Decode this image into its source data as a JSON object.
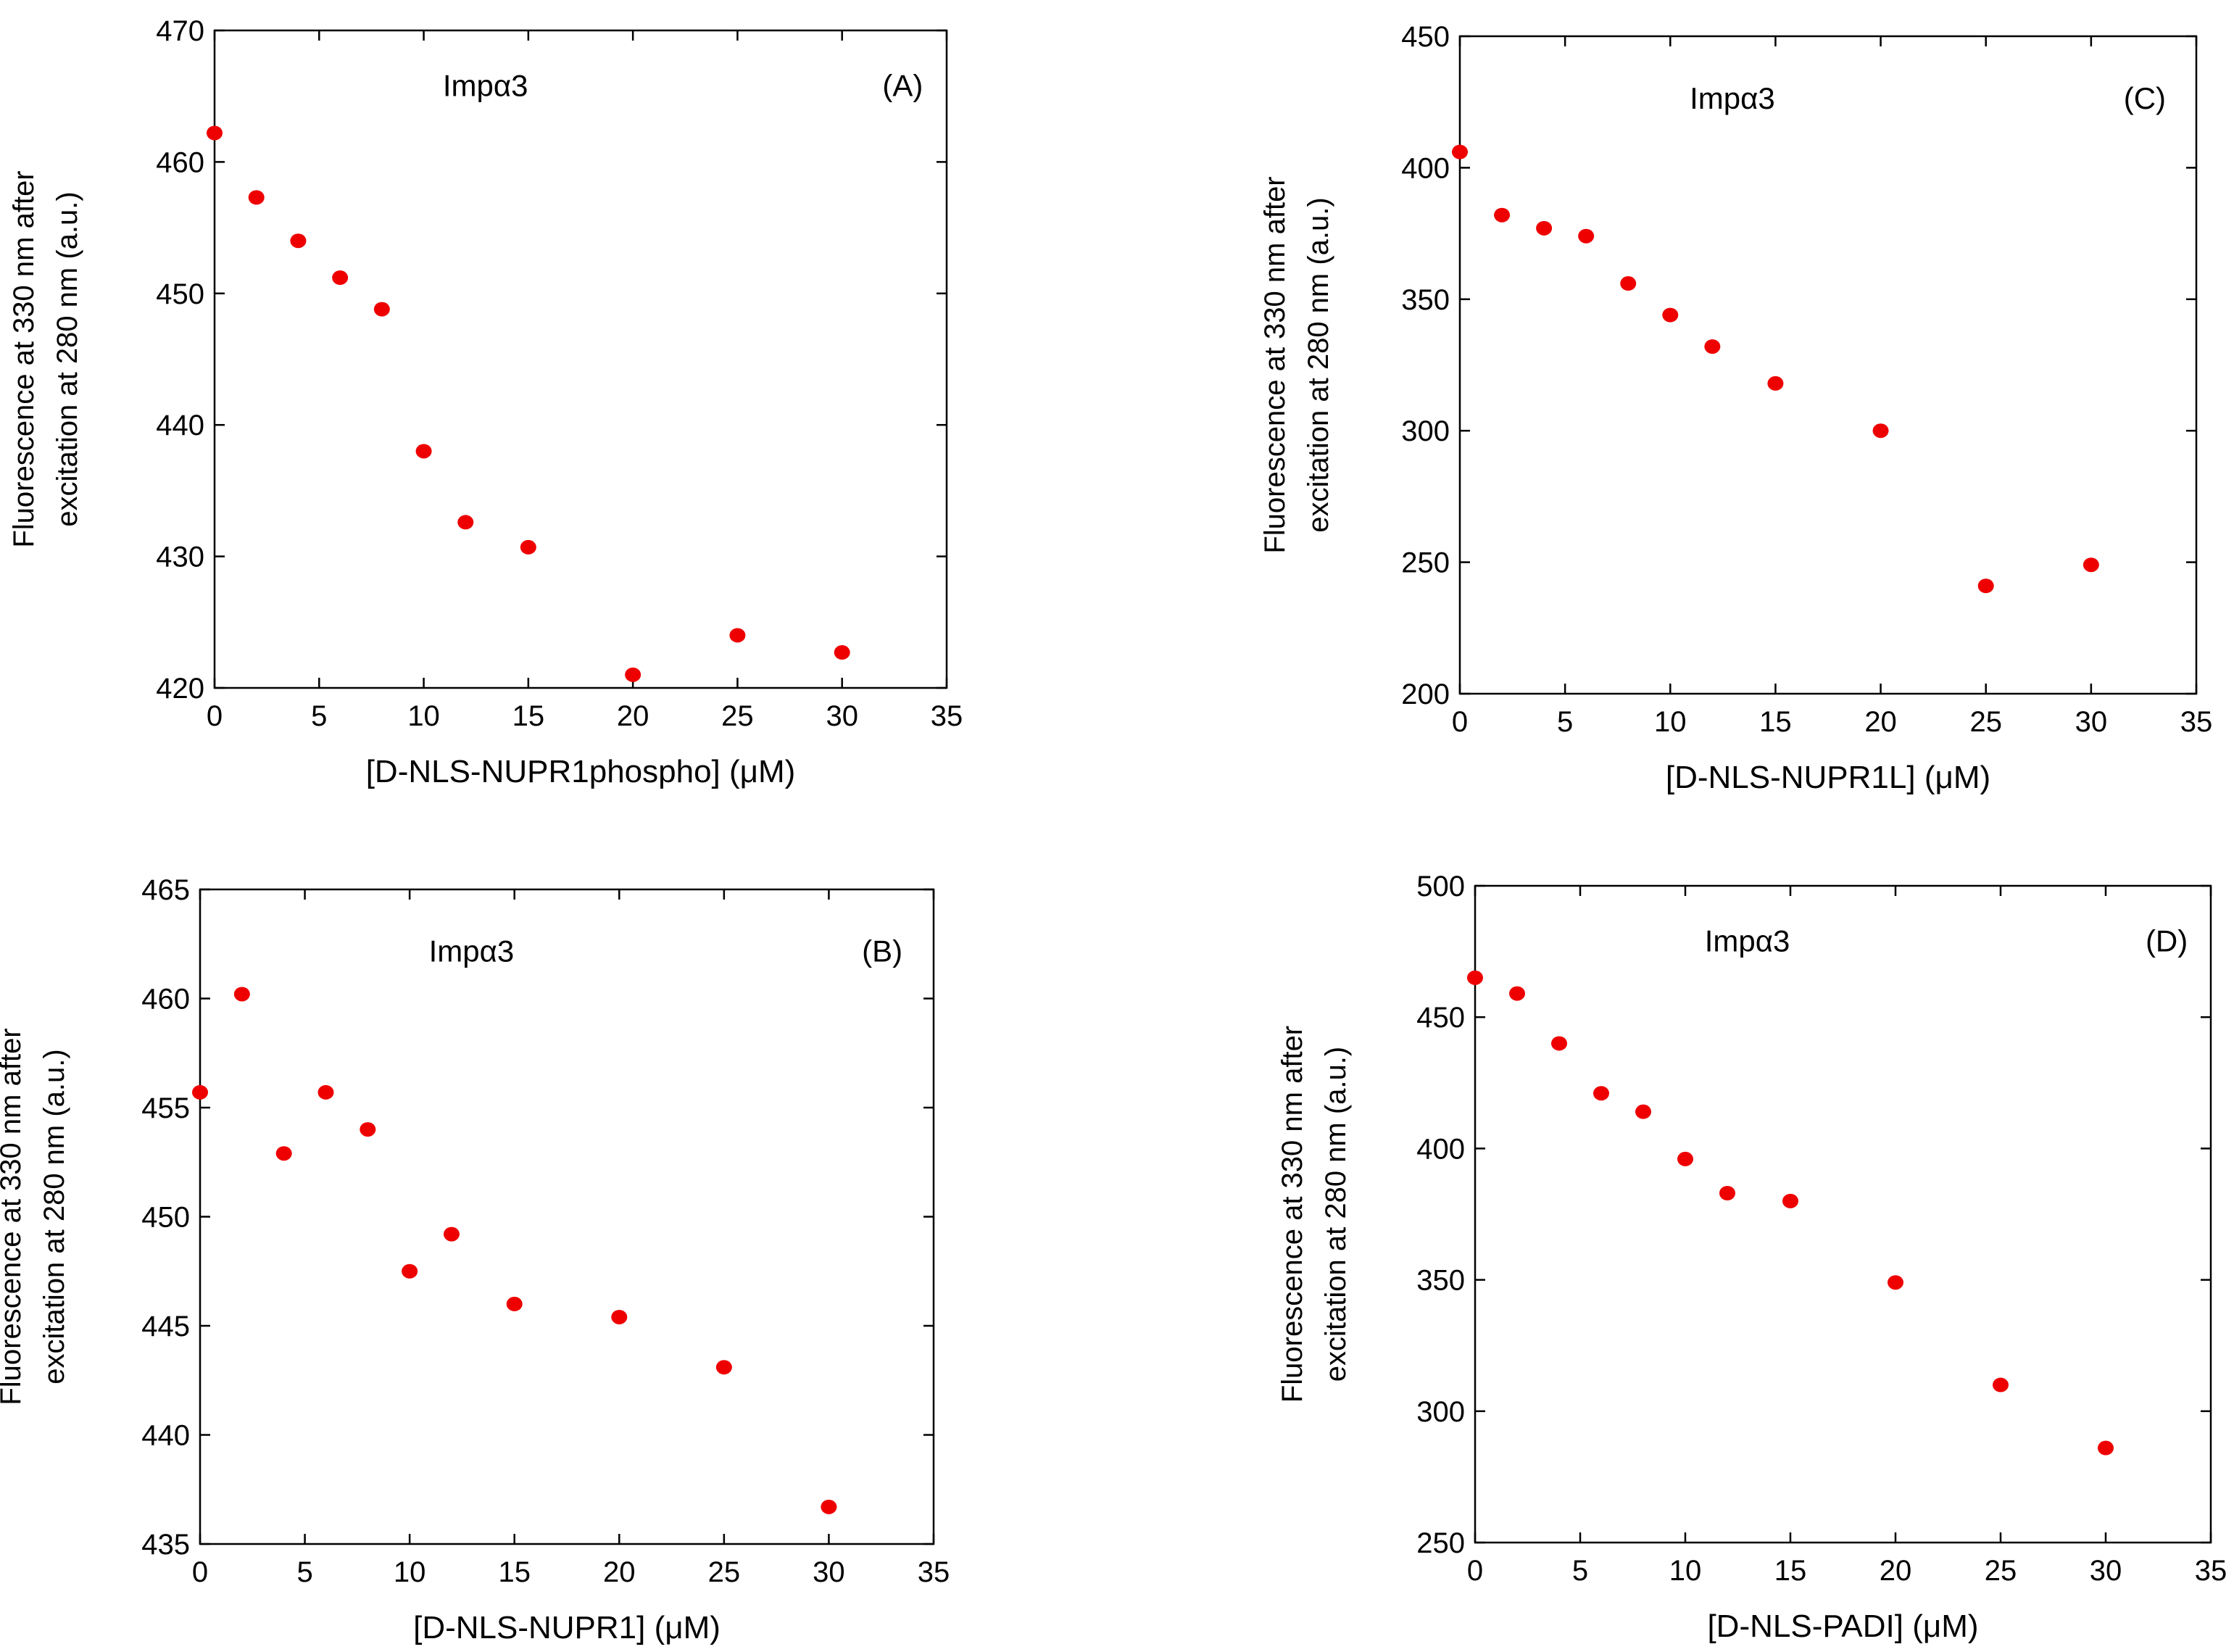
{
  "chart_data": [
    {
      "type": "scatter",
      "panel": "A",
      "annotation_label": "Impα3",
      "panel_label": "(A)",
      "xlabel": "[D-NLS-NUPR1phospho] (μM)",
      "ylabel_lines": [
        "Fluorescence at 330 nm after",
        "excitation at 280 nm (a.u.)"
      ],
      "xlim": [
        0,
        35
      ],
      "ylim": [
        420,
        470
      ],
      "xticks": [
        0,
        5,
        10,
        15,
        20,
        25,
        30,
        35
      ],
      "yticks": [
        420,
        430,
        440,
        450,
        460,
        470
      ],
      "x": [
        0,
        2,
        4,
        6,
        8,
        10,
        12,
        15,
        20,
        25,
        30
      ],
      "y": [
        462.2,
        457.3,
        454.0,
        451.2,
        448.8,
        438.0,
        432.6,
        430.7,
        421.0,
        424.0,
        422.7
      ]
    },
    {
      "type": "scatter",
      "panel": "C",
      "annotation_label": "Impα3",
      "panel_label": "(C)",
      "xlabel": "[D-NLS-NUPR1L] (μM)",
      "ylabel_lines": [
        "Fluorescence at 330 nm after",
        "excitation at 280 nm (a.u.)"
      ],
      "xlim": [
        0,
        35
      ],
      "ylim": [
        200,
        450
      ],
      "xticks": [
        0,
        5,
        10,
        15,
        20,
        25,
        30,
        35
      ],
      "yticks": [
        200,
        250,
        300,
        350,
        400,
        450
      ],
      "x": [
        0,
        2,
        4,
        6,
        8,
        10,
        12,
        15,
        20,
        25,
        30
      ],
      "y": [
        406,
        382,
        377,
        374,
        356,
        344,
        332,
        318,
        300,
        241,
        249
      ]
    },
    {
      "type": "scatter",
      "panel": "B",
      "annotation_label": "Impα3",
      "panel_label": "(B)",
      "xlabel": "[D-NLS-NUPR1] (μM)",
      "ylabel_lines": [
        "Fluorescence at 330 nm after",
        "excitation at 280 nm (a.u.)"
      ],
      "xlim": [
        0,
        35
      ],
      "ylim": [
        435,
        465
      ],
      "xticks": [
        0,
        5,
        10,
        15,
        20,
        25,
        30,
        35
      ],
      "yticks": [
        435,
        440,
        445,
        450,
        455,
        460,
        465
      ],
      "x": [
        0,
        2,
        4,
        6,
        8,
        10,
        12,
        15,
        20,
        25,
        30
      ],
      "y": [
        455.7,
        460.2,
        452.9,
        455.7,
        454.0,
        447.5,
        449.2,
        446.0,
        445.4,
        443.1,
        436.7
      ]
    },
    {
      "type": "scatter",
      "panel": "D",
      "annotation_label": "Impα3",
      "panel_label": "(D)",
      "xlabel": "[D-NLS-PADI] (μM)",
      "ylabel_lines": [
        "Fluorescence at 330 nm after",
        "excitation at 280 nm (a.u.)"
      ],
      "xlim": [
        0,
        35
      ],
      "ylim": [
        250,
        500
      ],
      "xticks": [
        0,
        5,
        10,
        15,
        20,
        25,
        30,
        35
      ],
      "yticks": [
        250,
        300,
        350,
        400,
        450,
        500
      ],
      "x": [
        0,
        2,
        4,
        6,
        8,
        10,
        12,
        15,
        20,
        25,
        30
      ],
      "y": [
        465,
        459,
        440,
        421,
        414,
        396,
        383,
        380,
        349,
        310,
        286
      ]
    }
  ],
  "style": {
    "marker_color": "#ee0000",
    "axis_color": "#000000",
    "background": "#ffffff"
  }
}
